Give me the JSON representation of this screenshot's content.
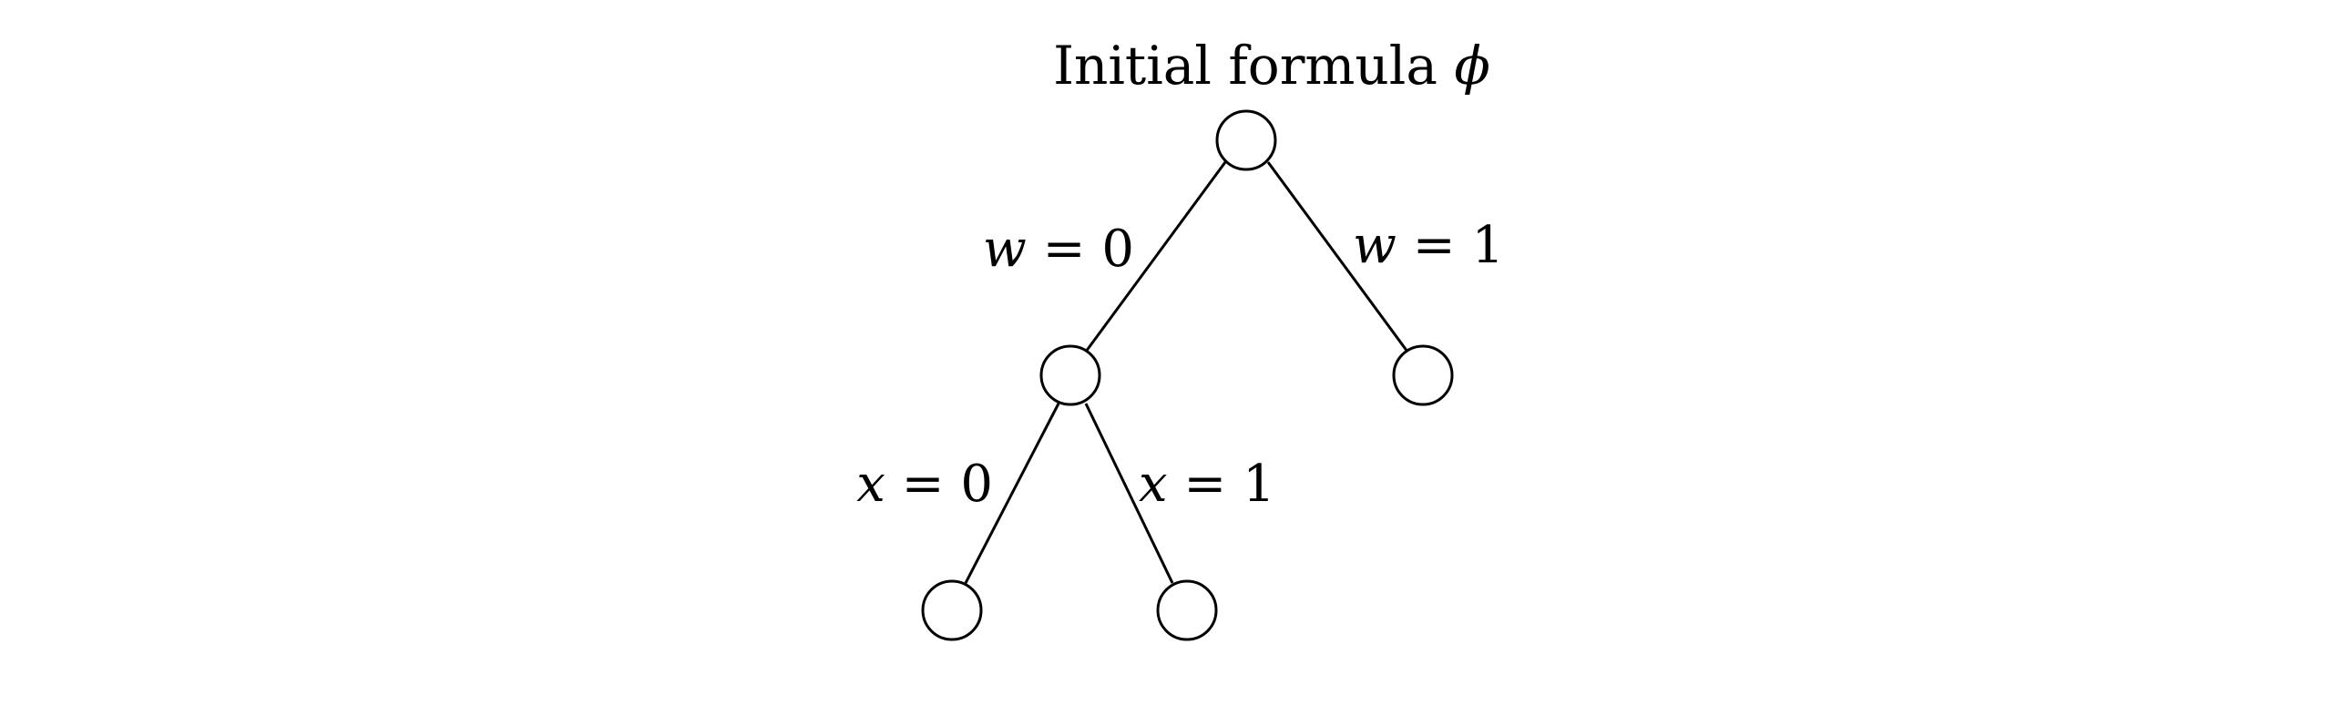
{
  "title": {
    "text": "Initial formula ",
    "symbol": "ϕ"
  },
  "tree": {
    "nodes": [
      {
        "id": "root"
      },
      {
        "id": "w0"
      },
      {
        "id": "w1"
      },
      {
        "id": "w0x0"
      },
      {
        "id": "w0x1"
      }
    ],
    "edges": [
      {
        "from": "root",
        "to": "w0",
        "var": "w",
        "op": " = ",
        "val": "0"
      },
      {
        "from": "root",
        "to": "w1",
        "var": "w",
        "op": " = ",
        "val": "1"
      },
      {
        "from": "w0",
        "to": "w0x0",
        "var": "x",
        "op": " = ",
        "val": "0"
      },
      {
        "from": "w0",
        "to": "w0x1",
        "var": "x",
        "op": " = ",
        "val": "1"
      }
    ]
  }
}
